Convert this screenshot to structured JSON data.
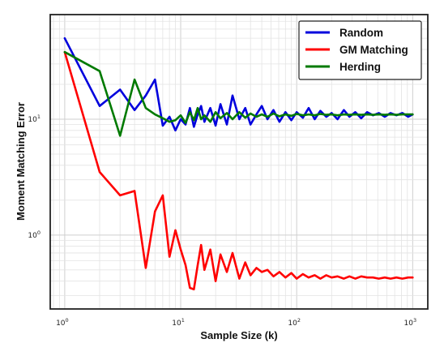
{
  "chart_data": {
    "type": "line",
    "xlabel": "Sample Size (k)",
    "ylabel": "Moment Matching Error",
    "x_scale": "log",
    "y_scale": "log",
    "xlim": [
      0.75,
      1350
    ],
    "ylim": [
      0.23,
      80
    ],
    "grid": true,
    "legend_position": "top-right",
    "x_ticks": [
      {
        "value": 1,
        "base": "10",
        "exp": "0"
      },
      {
        "value": 10,
        "base": "10",
        "exp": "1"
      },
      {
        "value": 100,
        "base": "10",
        "exp": "2"
      },
      {
        "value": 1000,
        "base": "10",
        "exp": "3"
      }
    ],
    "y_ticks": [
      {
        "value": 1,
        "base": "10",
        "exp": "0"
      },
      {
        "value": 10,
        "base": "10",
        "exp": "1"
      }
    ],
    "series": [
      {
        "name": "Random",
        "color": "#0000dd",
        "x": [
          1,
          2,
          3,
          4,
          5,
          6,
          7,
          8,
          9,
          10,
          11,
          12,
          13,
          14,
          15,
          16,
          18,
          20,
          22,
          25,
          28,
          32,
          36,
          40,
          45,
          50,
          56,
          63,
          71,
          80,
          90,
          100,
          113,
          127,
          143,
          160,
          180,
          200,
          225,
          255,
          285,
          320,
          360,
          405,
          455,
          510,
          575,
          645,
          725,
          815,
          915,
          1000
        ],
        "values": [
          50,
          13,
          18,
          12,
          16,
          22,
          8.8,
          10.5,
          8,
          10,
          9,
          12.5,
          8.6,
          11,
          13,
          9.5,
          12.5,
          8.8,
          13.5,
          9,
          16,
          10,
          12.5,
          9,
          11,
          13,
          10,
          12,
          9.5,
          11.5,
          9.8,
          11.5,
          10.3,
          12.5,
          10,
          11.8,
          10.5,
          11.3,
          10,
          12,
          10.5,
          11.5,
          10.2,
          11.5,
          10.8,
          11.3,
          10.5,
          11.3,
          10.8,
          11.3,
          10.5,
          11
        ]
      },
      {
        "name": "GM Matching",
        "color": "#ff0000",
        "x": [
          1,
          2,
          3,
          4,
          5,
          6,
          7,
          8,
          9,
          10,
          11,
          12,
          13,
          14,
          15,
          16,
          18,
          20,
          22,
          25,
          28,
          32,
          36,
          40,
          45,
          50,
          56,
          63,
          71,
          80,
          90,
          100,
          113,
          127,
          143,
          160,
          180,
          200,
          225,
          255,
          285,
          320,
          360,
          405,
          455,
          510,
          575,
          645,
          725,
          815,
          915,
          1000
        ],
        "values": [
          38,
          3.5,
          2.2,
          2.4,
          0.52,
          1.6,
          2.2,
          0.65,
          1.1,
          0.75,
          0.55,
          0.35,
          0.34,
          0.55,
          0.82,
          0.5,
          0.75,
          0.4,
          0.68,
          0.48,
          0.7,
          0.42,
          0.58,
          0.45,
          0.52,
          0.48,
          0.5,
          0.44,
          0.48,
          0.43,
          0.47,
          0.42,
          0.46,
          0.43,
          0.45,
          0.42,
          0.45,
          0.43,
          0.44,
          0.42,
          0.44,
          0.42,
          0.44,
          0.43,
          0.43,
          0.42,
          0.43,
          0.42,
          0.43,
          0.42,
          0.43,
          0.43
        ]
      },
      {
        "name": "Herding",
        "color": "#007a00",
        "x": [
          1,
          2,
          3,
          4,
          5,
          6,
          7,
          8,
          9,
          10,
          11,
          12,
          13,
          14,
          15,
          16,
          18,
          20,
          22,
          25,
          28,
          32,
          36,
          40,
          45,
          50,
          56,
          63,
          71,
          80,
          90,
          100,
          113,
          127,
          143,
          160,
          180,
          200,
          225,
          255,
          285,
          320,
          360,
          405,
          455,
          510,
          575,
          645,
          725,
          815,
          915,
          1000
        ],
        "values": [
          38,
          26,
          7.2,
          22,
          12.5,
          11,
          10.2,
          9.5,
          9.8,
          10.8,
          9.3,
          11.5,
          9.8,
          12.5,
          10,
          10.8,
          9.5,
          11.5,
          10.2,
          11.3,
          10,
          11.5,
          10.3,
          11.2,
          10.5,
          11,
          10.5,
          11.2,
          10.6,
          11,
          10.7,
          11.1,
          10.8,
          11,
          10.8,
          11.1,
          10.9,
          11,
          10.8,
          11,
          10.9,
          11,
          10.9,
          11,
          10.9,
          11,
          10.9,
          11,
          10.9,
          11,
          11,
          11
        ]
      }
    ]
  }
}
